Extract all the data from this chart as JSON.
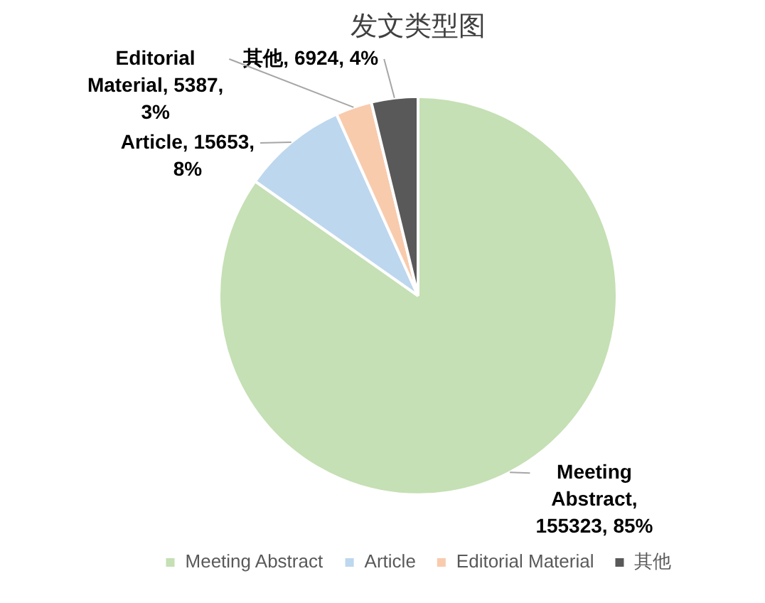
{
  "chart_data": {
    "type": "pie",
    "title": "发文类型图",
    "categories": [
      "Meeting Abstract",
      "Article",
      "Editorial Material",
      "其他"
    ],
    "values": [
      155323,
      15653,
      5387,
      6924
    ],
    "colors": [
      "#c5e0b4",
      "#bdd7ee",
      "#f8cbad",
      "#595959"
    ],
    "value_labels": [
      "Meeting Abstract, 155323, 85%",
      "Article, 15653, 8%",
      "Editorial Material, 5387, 3%",
      "其他, 6924, 4%"
    ],
    "legend": "bottom"
  }
}
